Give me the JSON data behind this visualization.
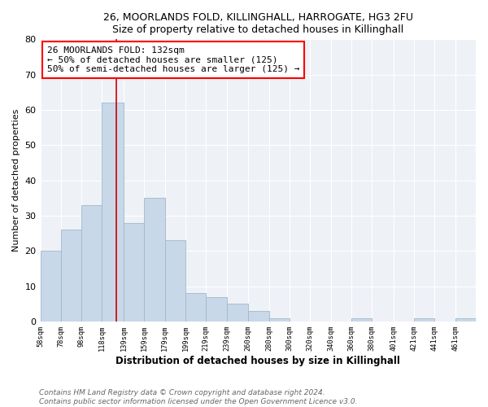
{
  "title1": "26, MOORLANDS FOLD, KILLINGHALL, HARROGATE, HG3 2FU",
  "title2": "Size of property relative to detached houses in Killinghall",
  "xlabel": "Distribution of detached houses by size in Killinghall",
  "ylabel": "Number of detached properties",
  "bar_edges": [
    58,
    78,
    98,
    118,
    139,
    159,
    179,
    199,
    219,
    239,
    260,
    280,
    300,
    320,
    340,
    360,
    380,
    401,
    421,
    441,
    461,
    481
  ],
  "bar_heights": [
    20,
    26,
    33,
    62,
    28,
    35,
    23,
    8,
    7,
    5,
    3,
    1,
    0,
    0,
    0,
    1,
    0,
    0,
    1,
    0,
    1
  ],
  "bar_color": "#c8d8e8",
  "bar_edgecolor": "#a0b8cc",
  "property_line_x": 132,
  "ylim": [
    0,
    80
  ],
  "annotation_line1": "26 MOORLANDS FOLD: 132sqm",
  "annotation_line2": "← 50% of detached houses are smaller (125)",
  "annotation_line3": "50% of semi-detached houses are larger (125) →",
  "annotation_box_color": "white",
  "annotation_box_edgecolor": "red",
  "vline_color": "#cc0000",
  "footnote1": "Contains HM Land Registry data © Crown copyright and database right 2024.",
  "footnote2": "Contains public sector information licensed under the Open Government Licence v3.0.",
  "bg_color": "#eef2f7",
  "tick_labels": [
    "58sqm",
    "78sqm",
    "98sqm",
    "118sqm",
    "139sqm",
    "159sqm",
    "179sqm",
    "199sqm",
    "219sqm",
    "239sqm",
    "260sqm",
    "280sqm",
    "300sqm",
    "320sqm",
    "340sqm",
    "360sqm",
    "380sqm",
    "401sqm",
    "421sqm",
    "441sqm",
    "461sqm"
  ]
}
